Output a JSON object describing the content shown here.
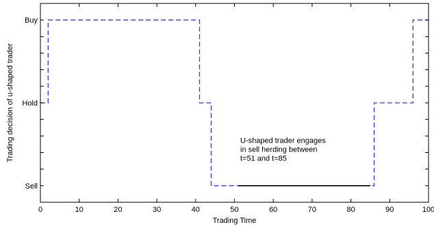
{
  "chart_data": {
    "type": "line",
    "title": "",
    "xlabel": "Trading Time",
    "ylabel": "Trading decision of u-shaped trader",
    "xlim": [
      0,
      100
    ],
    "ylim": [
      -0.2,
      2.2
    ],
    "x_ticks": [
      0,
      10,
      20,
      30,
      40,
      50,
      60,
      70,
      80,
      90,
      100
    ],
    "y_ticks": [
      {
        "value": 0,
        "label": "Sell"
      },
      {
        "value": 1,
        "label": "Hold"
      },
      {
        "value": 2,
        "label": "Buy"
      }
    ],
    "grid": false,
    "series": [
      {
        "style": "dashed",
        "color": "#3a3ad6",
        "x": [
          0,
          2,
          2,
          41,
          41,
          44,
          44,
          86,
          86,
          96,
          96,
          100
        ],
        "y": [
          1,
          1,
          2,
          2,
          1,
          1,
          0,
          0,
          1,
          1,
          2,
          2
        ]
      },
      {
        "style": "solid",
        "color": "#000000",
        "x": [
          51,
          85
        ],
        "y": [
          0,
          0
        ]
      }
    ],
    "annotation": {
      "lines": [
        "U-shaped trader engages",
        "in sell herding between",
        "t=51 and t=85"
      ],
      "x": 51.5,
      "y": 0.3
    }
  }
}
